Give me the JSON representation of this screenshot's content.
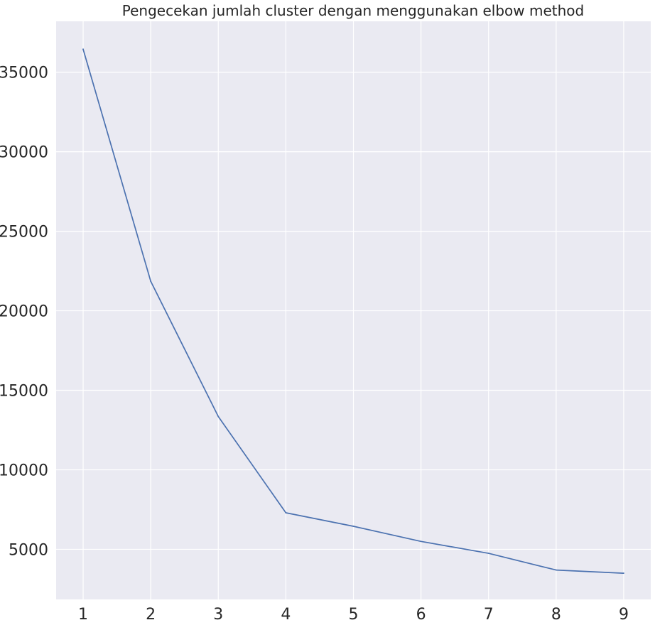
{
  "chart_data": {
    "type": "line",
    "title": "Pengecekan jumlah cluster dengan menggunakan elbow method",
    "xlabel": "",
    "ylabel": "",
    "x": [
      1,
      2,
      3,
      4,
      5,
      6,
      7,
      8,
      9
    ],
    "series": [
      {
        "values": [
          36450,
          21850,
          13350,
          7300,
          6450,
          5500,
          4750,
          3700,
          3500
        ],
        "color": "#4c72b0"
      }
    ],
    "xticks": [
      1,
      2,
      3,
      4,
      5,
      6,
      7,
      8,
      9
    ],
    "yticks": [
      5000,
      10000,
      15000,
      20000,
      25000,
      30000,
      35000
    ],
    "xlim": [
      0.6,
      9.4
    ],
    "ylim": [
      1850,
      38200
    ],
    "grid": true,
    "background": "#eaeaf2",
    "grid_color": "#ffffff"
  }
}
